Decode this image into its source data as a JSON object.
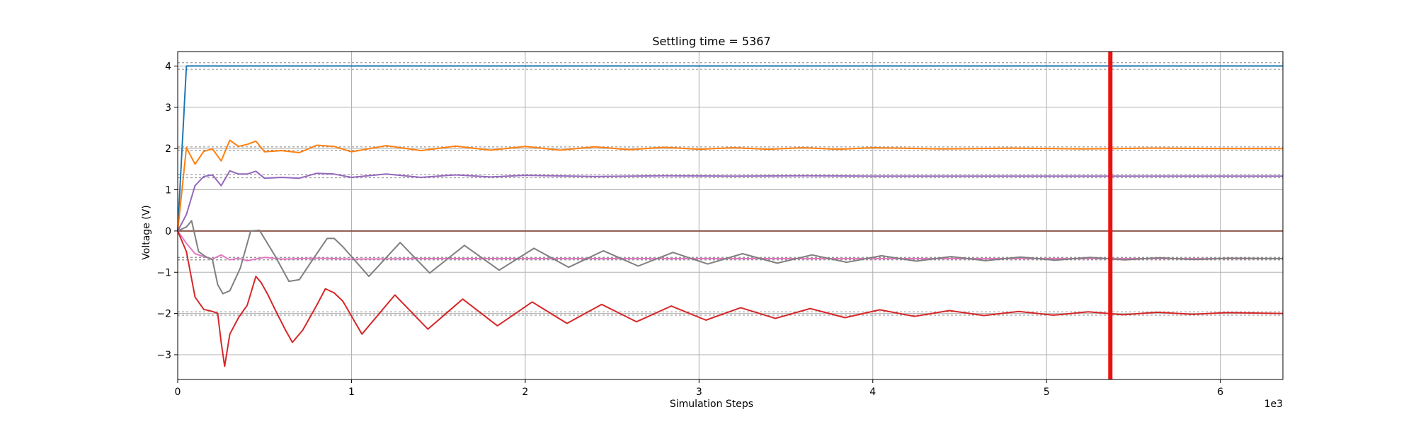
{
  "chart_data": {
    "type": "line",
    "title": "Settling time = 5367",
    "xlabel": "Simulation Steps",
    "ylabel": "Voltage (V)",
    "x_offset_label": "1e3",
    "xlim": [
      0,
      6360
    ],
    "ylim": [
      -3.6,
      4.35
    ],
    "grid": true,
    "xticks": [
      0,
      1000,
      2000,
      3000,
      4000,
      5000,
      6000
    ],
    "xtick_labels": [
      "0",
      "1",
      "2",
      "3",
      "4",
      "5",
      "6"
    ],
    "yticks": [
      -3,
      -2,
      -1,
      0,
      1,
      2,
      3,
      4
    ],
    "ytick_labels": [
      "−3",
      "−2",
      "−1",
      "0",
      "1",
      "2",
      "3",
      "4"
    ],
    "settling_time": 5367,
    "settling_line_color": "#ee1111",
    "series": [
      {
        "color": "#1f77b4",
        "target": 4.0,
        "band": 0.08,
        "x": [
          0,
          50,
          6360
        ],
        "y": [
          0,
          4.0,
          4.0
        ]
      },
      {
        "color": "#ff7f0e",
        "target": 2.0,
        "band": 0.04,
        "x": [
          0,
          50,
          100,
          150,
          200,
          250,
          300,
          350,
          400,
          450,
          500,
          600,
          700,
          800,
          900,
          1000,
          1200,
          1400,
          1600,
          1800,
          2000,
          2200,
          2400,
          2600,
          2800,
          3000,
          3200,
          3400,
          3600,
          3800,
          4000,
          4400,
          4800,
          5200,
          5600,
          6000,
          6360
        ],
        "y": [
          0,
          2.02,
          1.62,
          1.93,
          1.99,
          1.7,
          2.2,
          2.05,
          2.1,
          2.18,
          1.92,
          1.95,
          1.9,
          2.08,
          2.05,
          1.92,
          2.07,
          1.95,
          2.06,
          1.96,
          2.05,
          1.96,
          2.04,
          1.97,
          2.03,
          1.98,
          2.02,
          1.98,
          2.02,
          1.98,
          2.02,
          1.99,
          2.01,
          1.99,
          2.01,
          2.0,
          2.0
        ]
      },
      {
        "color": "#9467bd",
        "target": 1.33,
        "band": 0.04,
        "x": [
          0,
          50,
          100,
          150,
          200,
          250,
          300,
          350,
          400,
          450,
          500,
          600,
          700,
          800,
          900,
          1000,
          1200,
          1400,
          1600,
          1800,
          2000,
          2400,
          2800,
          3200,
          3600,
          4000,
          4800,
          5600,
          6360
        ],
        "y": [
          0,
          0.4,
          1.1,
          1.32,
          1.36,
          1.1,
          1.46,
          1.38,
          1.38,
          1.45,
          1.28,
          1.3,
          1.28,
          1.4,
          1.38,
          1.3,
          1.38,
          1.3,
          1.36,
          1.31,
          1.35,
          1.32,
          1.34,
          1.33,
          1.34,
          1.33,
          1.33,
          1.33,
          1.33
        ]
      },
      {
        "color": "#8c564b",
        "target": 0.0,
        "band": 0.0,
        "x": [
          0,
          6360
        ],
        "y": [
          0,
          0
        ]
      },
      {
        "color": "#e377c2",
        "target": -0.67,
        "band": 0.03,
        "x": [
          0,
          50,
          100,
          150,
          200,
          250,
          300,
          350,
          400,
          500,
          600,
          800,
          1000,
          1400,
          2000,
          3000,
          4000,
          5000,
          6360
        ],
        "y": [
          0,
          -0.3,
          -0.55,
          -0.62,
          -0.68,
          -0.58,
          -0.7,
          -0.66,
          -0.72,
          -0.64,
          -0.68,
          -0.66,
          -0.68,
          -0.67,
          -0.67,
          -0.67,
          -0.67,
          -0.67,
          -0.67
        ]
      },
      {
        "color": "#7f7f7f",
        "target": -0.67,
        "band": 0.03,
        "x": [
          0,
          50,
          80,
          120,
          160,
          200,
          230,
          260,
          300,
          360,
          420,
          470,
          560,
          640,
          700,
          760,
          860,
          900,
          950,
          1100,
          1280,
          1450,
          1650,
          1850,
          2050,
          2250,
          2450,
          2650,
          2850,
          3050,
          3250,
          3450,
          3650,
          3850,
          4050,
          4250,
          4450,
          4650,
          4850,
          5050,
          5250,
          5450,
          5650,
          5850,
          6050,
          6360
        ],
        "y": [
          0,
          0.1,
          0.25,
          -0.5,
          -0.62,
          -0.7,
          -1.3,
          -1.52,
          -1.45,
          -0.9,
          0.0,
          0.02,
          -0.6,
          -1.22,
          -1.18,
          -0.8,
          -0.18,
          -0.18,
          -0.38,
          -1.1,
          -0.28,
          -1.02,
          -0.35,
          -0.95,
          -0.42,
          -0.88,
          -0.48,
          -0.85,
          -0.52,
          -0.8,
          -0.55,
          -0.78,
          -0.58,
          -0.76,
          -0.6,
          -0.73,
          -0.62,
          -0.72,
          -0.63,
          -0.71,
          -0.64,
          -0.7,
          -0.65,
          -0.69,
          -0.66,
          -0.67
        ]
      },
      {
        "color": "#d62728",
        "target": -2.0,
        "band": 0.04,
        "x": [
          0,
          50,
          100,
          150,
          200,
          230,
          250,
          270,
          300,
          350,
          400,
          450,
          480,
          520,
          560,
          620,
          660,
          720,
          800,
          850,
          900,
          950,
          1060,
          1250,
          1440,
          1640,
          1840,
          2040,
          2240,
          2440,
          2640,
          2840,
          3040,
          3240,
          3440,
          3640,
          3840,
          4040,
          4240,
          4440,
          4640,
          4840,
          5040,
          5240,
          5440,
          5640,
          5840,
          6040,
          6360
        ],
        "y": [
          0,
          -0.5,
          -1.6,
          -1.9,
          -1.95,
          -2.0,
          -2.7,
          -3.28,
          -2.5,
          -2.1,
          -1.8,
          -1.1,
          -1.25,
          -1.55,
          -1.9,
          -2.4,
          -2.7,
          -2.4,
          -1.8,
          -1.4,
          -1.5,
          -1.7,
          -2.5,
          -1.55,
          -2.38,
          -1.65,
          -2.3,
          -1.72,
          -2.24,
          -1.78,
          -2.2,
          -1.82,
          -2.16,
          -1.86,
          -2.12,
          -1.88,
          -2.1,
          -1.91,
          -2.07,
          -1.93,
          -2.05,
          -1.95,
          -2.04,
          -1.96,
          -2.03,
          -1.97,
          -2.02,
          -1.98,
          -2.0
        ]
      }
    ]
  }
}
